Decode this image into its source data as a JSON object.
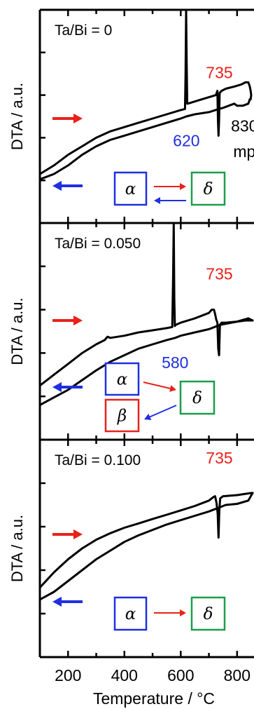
{
  "colors": {
    "red": "#e8211b",
    "blue": "#1f2fe0",
    "green": "#1a9e4a",
    "black": "#000000"
  },
  "chart_data": [
    {
      "type": "line",
      "panel_label": "Ta/Bi = 0",
      "ylabel": "DTA / a.u.",
      "xlim": [
        100,
        860
      ],
      "ylim": [
        0,
        10
      ],
      "series": [
        {
          "x": [
            100,
            150,
            200,
            250,
            300,
            350,
            400,
            450,
            500,
            550,
            600,
            615,
            617,
            619,
            621,
            623,
            625,
            650,
            700,
            725,
            730,
            732,
            734,
            736,
            738,
            745,
            760,
            790,
            815,
            830,
            840,
            845,
            848,
            850,
            848,
            845
          ],
          "y": [
            2.3,
            2.7,
            3.2,
            3.6,
            4.0,
            4.3,
            4.5,
            4.7,
            4.9,
            5.1,
            5.3,
            5.35,
            7.0,
            10.0,
            7.5,
            5.6,
            5.6,
            5.7,
            5.9,
            6.0,
            6.2,
            4.8,
            4.1,
            4.8,
            6.1,
            6.2,
            6.3,
            6.4,
            6.5,
            6.6,
            6.6,
            6.4,
            6.2,
            6.0,
            5.8,
            5.8
          ]
        },
        {
          "x": [
            845,
            840,
            820,
            800,
            790,
            770,
            750,
            735,
            700,
            650,
            620,
            600,
            550,
            500,
            450,
            400,
            350,
            300,
            250,
            200,
            150,
            100
          ],
          "y": [
            5.8,
            5.6,
            5.5,
            5.5,
            5.6,
            5.5,
            5.4,
            5.35,
            5.2,
            5.1,
            5.0,
            4.9,
            4.7,
            4.5,
            4.3,
            4.1,
            3.9,
            3.6,
            3.2,
            2.7,
            2.3,
            2.05
          ]
        }
      ],
      "annotations": [
        {
          "text": "735",
          "color": "red",
          "x": 737,
          "y": 6.8
        },
        {
          "text": "620",
          "color": "blue",
          "x": 620,
          "y": 3.6
        },
        {
          "text": "830",
          "color": "black",
          "x": 826,
          "y": 4.3
        },
        {
          "text": "mp",
          "color": "black",
          "x": 826,
          "y": 3.1
        }
      ],
      "heating_arrow_color": "red",
      "cooling_arrow_color": "blue",
      "phases": {
        "start": "α",
        "end": "δ"
      }
    },
    {
      "type": "line",
      "panel_label": "Ta/Bi = 0.050",
      "ylabel": "DTA / a.u.",
      "xlim": [
        100,
        860
      ],
      "ylim": [
        0,
        10
      ],
      "series": [
        {
          "x": [
            100,
            150,
            200,
            250,
            300,
            330,
            340,
            350,
            400,
            450,
            500,
            550,
            570,
            573,
            575,
            577,
            579,
            582,
            600,
            650,
            700,
            710,
            718,
            722,
            726,
            730,
            733,
            736,
            739,
            745,
            760,
            800,
            830,
            850,
            855
          ],
          "y": [
            2.5,
            3.0,
            3.5,
            4.0,
            4.4,
            4.6,
            4.75,
            4.7,
            4.8,
            4.95,
            5.05,
            5.15,
            5.2,
            7.5,
            10.0,
            6.5,
            5.25,
            5.3,
            5.4,
            5.6,
            5.85,
            6.0,
            6.0,
            5.8,
            5.55,
            5.4,
            4.2,
            3.9,
            5.3,
            5.4,
            5.4,
            5.45,
            5.5,
            5.5,
            5.5
          ]
        },
        {
          "x": [
            855,
            840,
            800,
            760,
            740,
            700,
            650,
            600,
            580,
            550,
            500,
            450,
            400,
            350,
            300,
            250,
            200,
            150,
            100
          ],
          "y": [
            5.5,
            5.6,
            5.45,
            5.35,
            5.3,
            5.1,
            4.95,
            4.8,
            4.7,
            4.6,
            4.4,
            4.2,
            3.9,
            3.6,
            3.2,
            2.75,
            2.3,
            1.95,
            1.6
          ]
        }
      ],
      "annotations": [
        {
          "text": "735",
          "color": "red",
          "x": 737,
          "y": 7.4
        },
        {
          "text": "580",
          "color": "blue",
          "x": 580,
          "y": 3.3
        }
      ],
      "heating_arrow_color": "red",
      "cooling_arrow_color": "blue",
      "phases": {
        "start": "α",
        "end": "δ",
        "cooling": "β"
      }
    },
    {
      "type": "line",
      "panel_label": "Ta/Bi = 0.100",
      "ylabel": "DTA / a.u.",
      "xlim": [
        100,
        860
      ],
      "ylim": [
        0,
        10
      ],
      "series": [
        {
          "x": [
            100,
            150,
            200,
            250,
            300,
            350,
            400,
            450,
            500,
            550,
            600,
            650,
            700,
            715,
            722,
            727,
            731,
            734,
            737,
            740,
            750,
            800,
            850,
            855
          ],
          "y": [
            3.2,
            3.9,
            4.5,
            5.0,
            5.4,
            5.7,
            5.95,
            6.15,
            6.35,
            6.55,
            6.75,
            6.95,
            7.2,
            7.35,
            7.4,
            7.1,
            6.6,
            5.5,
            6.8,
            7.3,
            7.4,
            7.45,
            7.55,
            7.55
          ]
        },
        {
          "x": [
            855,
            840,
            800,
            760,
            740,
            700,
            650,
            600,
            550,
            500,
            450,
            400,
            350,
            300,
            250,
            200,
            150,
            100
          ],
          "y": [
            7.55,
            7.2,
            7.05,
            7.0,
            6.9,
            6.7,
            6.5,
            6.3,
            6.1,
            5.85,
            5.6,
            5.3,
            4.9,
            4.5,
            4.0,
            3.5,
            3.0,
            2.65
          ]
        }
      ],
      "annotations": [
        {
          "text": "735",
          "color": "red",
          "x": 737,
          "y": 8.9
        }
      ],
      "heating_arrow_color": "red",
      "cooling_arrow_color": "blue",
      "phases": {
        "start": "α",
        "end": "δ"
      }
    }
  ],
  "x_axis": {
    "label": "Temperature / °C",
    "ticks": [
      200,
      400,
      600,
      800
    ],
    "minor_ticks": [
      100,
      300,
      500,
      700
    ]
  }
}
